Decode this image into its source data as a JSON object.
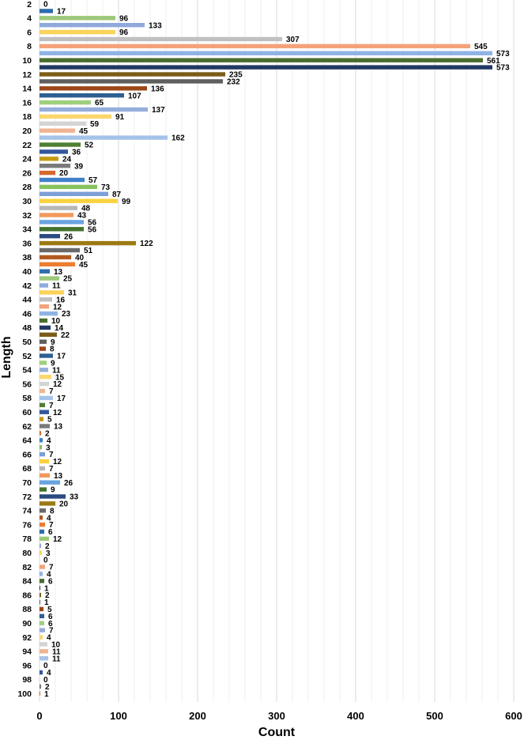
{
  "chart_data": {
    "type": "bar",
    "orientation": "horizontal",
    "xlabel": "Count",
    "ylabel": "Length",
    "xlim": [
      0,
      600
    ],
    "x_ticks": [
      0,
      100,
      200,
      300,
      400,
      500,
      600
    ],
    "y_tick_labels": [
      "2",
      "4",
      "6",
      "8",
      "10",
      "12",
      "14",
      "16",
      "18",
      "20",
      "22",
      "24",
      "26",
      "28",
      "30",
      "32",
      "34",
      "36",
      "38",
      "40",
      "42",
      "44",
      "46",
      "48",
      "50",
      "52",
      "54",
      "56",
      "58",
      "60",
      "62",
      "64",
      "66",
      "68",
      "70",
      "72",
      "74",
      "76",
      "78",
      "80",
      "82",
      "84",
      "86",
      "88",
      "90",
      "92",
      "94",
      "96",
      "98",
      "100"
    ],
    "categories": [
      2,
      3,
      4,
      5,
      6,
      7,
      8,
      9,
      10,
      11,
      12,
      13,
      14,
      15,
      16,
      17,
      18,
      19,
      20,
      21,
      22,
      23,
      24,
      25,
      26,
      27,
      28,
      29,
      30,
      31,
      32,
      33,
      34,
      35,
      36,
      37,
      38,
      39,
      40,
      41,
      42,
      43,
      44,
      45,
      46,
      47,
      48,
      49,
      50,
      51,
      52,
      53,
      54,
      55,
      56,
      57,
      58,
      59,
      60,
      61,
      62,
      63,
      64,
      65,
      66,
      67,
      68,
      69,
      70,
      71,
      72,
      73,
      74,
      75,
      76,
      77,
      78,
      79,
      80,
      81,
      82,
      83,
      84,
      85,
      86,
      87,
      88,
      89,
      90,
      91,
      92,
      93,
      94,
      95,
      96,
      97,
      98,
      99,
      100
    ],
    "values": [
      0,
      17,
      96,
      133,
      96,
      307,
      545,
      573,
      561,
      573,
      235,
      232,
      136,
      107,
      65,
      137,
      91,
      59,
      45,
      162,
      52,
      36,
      24,
      39,
      20,
      57,
      73,
      87,
      99,
      48,
      43,
      56,
      56,
      26,
      122,
      51,
      40,
      45,
      13,
      25,
      11,
      31,
      16,
      12,
      23,
      10,
      14,
      22,
      9,
      8,
      17,
      9,
      11,
      15,
      12,
      7,
      17,
      7,
      12,
      5,
      13,
      2,
      4,
      3,
      7,
      12,
      7,
      13,
      26,
      9,
      33,
      20,
      8,
      4,
      7,
      6,
      12,
      2,
      3,
      0,
      7,
      4,
      6,
      1,
      2,
      1,
      5,
      6,
      6,
      7,
      4,
      10,
      11,
      11,
      0,
      4,
      0,
      2,
      1
    ],
    "palette": [
      "#ed7d31",
      "#2e6bad",
      "#9dc97a",
      "#8fa9dc",
      "#fcd35a",
      "#c0c0c0",
      "#f3a27a",
      "#8fb3e5",
      "#4a6e2e",
      "#223864",
      "#7c5d18",
      "#5f5f5f",
      "#9d4718",
      "#2e5f91",
      "#9fd07e",
      "#96aedc",
      "#fbd76c",
      "#d4d4d4",
      "#f0b491",
      "#a5c3ea",
      "#4f7f33",
      "#34579c",
      "#c49b14",
      "#7a7a7a",
      "#d4682d",
      "#3f80c9",
      "#86c25e",
      "#7d9fd8",
      "#fcd33f",
      "#b7b7b7",
      "#f2995a",
      "#6aa3e0",
      "#43722c",
      "#2a4a80",
      "#9c7a13",
      "#6a6a6a",
      "#b35a20"
    ],
    "grid": "vertical",
    "legend": "none"
  }
}
